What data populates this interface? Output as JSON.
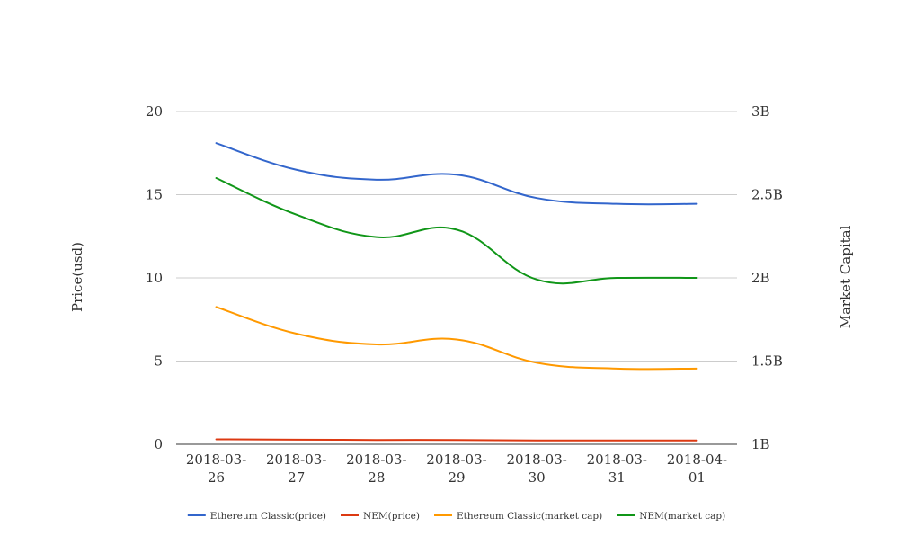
{
  "chart_data": {
    "type": "line",
    "categories": [
      [
        "2018-03-",
        "26"
      ],
      [
        "2018-03-",
        "27"
      ],
      [
        "2018-03-",
        "28"
      ],
      [
        "2018-03-",
        "29"
      ],
      [
        "2018-03-",
        "30"
      ],
      [
        "2018-03-",
        "31"
      ],
      [
        "2018-04-",
        "01"
      ]
    ],
    "left_axis": {
      "label": "Price(usd)",
      "min": 0,
      "max": 20,
      "ticks": [
        {
          "value": 0,
          "label": "0"
        },
        {
          "value": 5,
          "label": "5"
        },
        {
          "value": 10,
          "label": "10"
        },
        {
          "value": 15,
          "label": "15"
        },
        {
          "value": 20,
          "label": "20"
        }
      ]
    },
    "right_axis": {
      "label": "Market Capital",
      "min": 1000000000,
      "max": 3000000000,
      "ticks": [
        {
          "value": 1000000000,
          "label": "1B"
        },
        {
          "value": 1500000000,
          "label": "1.5B"
        },
        {
          "value": 2000000000,
          "label": "2B"
        },
        {
          "value": 2500000000,
          "label": "2.5B"
        },
        {
          "value": 3000000000,
          "label": "3B"
        }
      ]
    },
    "series": [
      {
        "name": "Ethereum Classic(price)",
        "axis": "left",
        "color": "#3366cc",
        "values": [
          18.1,
          16.5,
          15.9,
          16.2,
          14.8,
          14.45,
          14.45
        ]
      },
      {
        "name": "NEM(price)",
        "axis": "left",
        "color": "#dc3912",
        "values": [
          0.3,
          0.28,
          0.26,
          0.26,
          0.23,
          0.23,
          0.23
        ]
      },
      {
        "name": "Ethereum Classic(market cap)",
        "axis": "right",
        "color": "#ff9900",
        "values": [
          1825000000,
          1665000000,
          1600000000,
          1630000000,
          1490000000,
          1455000000,
          1455000000
        ]
      },
      {
        "name": "NEM(market cap)",
        "axis": "right",
        "color": "#109618",
        "values": [
          2600000000,
          2380000000,
          2245000000,
          2290000000,
          1990000000,
          2000000000,
          2000000000
        ]
      }
    ],
    "grid": true,
    "legend_position": "bottom"
  }
}
